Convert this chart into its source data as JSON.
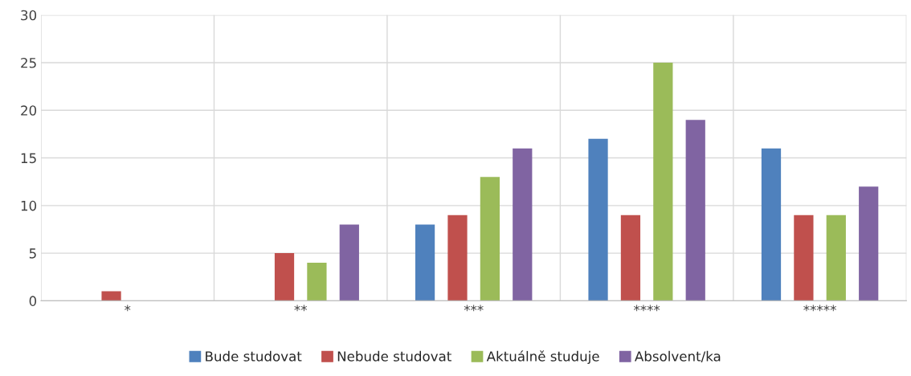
{
  "chart_data": {
    "type": "bar",
    "categories": [
      "*",
      "**",
      "***",
      "****",
      "*****"
    ],
    "series": [
      {
        "name": "Bude studovat",
        "color": "#4f81bd",
        "values": [
          0,
          0,
          8,
          17,
          16
        ]
      },
      {
        "name": "Nebude studovat",
        "color": "#c0504d",
        "values": [
          1,
          5,
          9,
          9,
          9
        ]
      },
      {
        "name": "Aktuálně studuje",
        "color": "#9bbb59",
        "values": [
          0,
          4,
          13,
          25,
          9
        ]
      },
      {
        "name": "Absolvent/ka",
        "color": "#8064a2",
        "values": [
          0,
          8,
          16,
          19,
          12
        ]
      }
    ],
    "ylim": [
      0,
      30
    ],
    "yticks": [
      0,
      5,
      10,
      15,
      20,
      25,
      30
    ],
    "grid": true,
    "legend": "bottom"
  }
}
